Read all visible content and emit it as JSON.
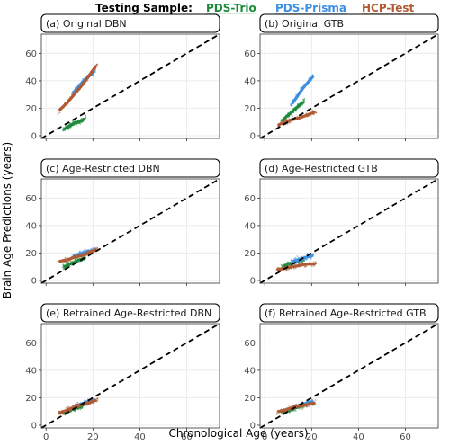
{
  "legend": {
    "title": "Testing Sample:",
    "items": [
      {
        "label": "PDS-Trio",
        "color": "#1b8a3a"
      },
      {
        "label": "PDS-Prisma",
        "color": "#3d8fe0"
      },
      {
        "label": "HCP-Test",
        "color": "#b05a33"
      }
    ]
  },
  "chart_data": {
    "type": "scatter",
    "xlabel": "Chronological Age (years)",
    "ylabel": "Brain Age Predictions (years)",
    "xlim": [
      -2,
      74
    ],
    "ylim": [
      -2,
      74
    ],
    "xticks": [
      "0",
      "20",
      "40",
      "60"
    ],
    "yticks": [
      "0",
      "20",
      "40",
      "60"
    ],
    "identity_line": true,
    "grid": true,
    "panels": [
      {
        "title": "(a) Original DBN",
        "series": [
          {
            "name": "PDS-Trio",
            "x": [
              8,
              10,
              12,
              14,
              16
            ],
            "y": [
              5,
              7,
              9,
              10,
              12
            ]
          },
          {
            "name": "PDS-Prisma",
            "x": [
              12,
              14,
              16,
              18,
              20
            ],
            "y": [
              32,
              36,
              40,
              43,
              46
            ]
          },
          {
            "name": "HCP-Test",
            "x": [
              6,
              9,
              12,
              15,
              18,
              21
            ],
            "y": [
              19,
              24,
              30,
              36,
              43,
              50
            ]
          }
        ]
      },
      {
        "title": "(b) Original GTB",
        "series": [
          {
            "name": "PDS-Trio",
            "x": [
              8,
              10,
              12,
              14,
              16
            ],
            "y": [
              12,
              15,
              18,
              21,
              24
            ]
          },
          {
            "name": "PDS-Prisma",
            "x": [
              12,
              14,
              16,
              18,
              20
            ],
            "y": [
              24,
              29,
              34,
              38,
              42
            ]
          },
          {
            "name": "HCP-Test",
            "x": [
              6,
              9,
              12,
              15,
              18,
              21
            ],
            "y": [
              8,
              10,
              12,
              13,
              15,
              17
            ]
          }
        ]
      },
      {
        "title": "(c) Age-Restricted DBN",
        "series": [
          {
            "name": "PDS-Trio",
            "x": [
              8,
              10,
              12,
              14,
              16
            ],
            "y": [
              10,
              12,
              13,
              15,
              16
            ]
          },
          {
            "name": "PDS-Prisma",
            "x": [
              12,
              14,
              16,
              18,
              20
            ],
            "y": [
              18,
              19,
              20,
              21,
              22
            ]
          },
          {
            "name": "HCP-Test",
            "x": [
              6,
              9,
              12,
              15,
              18,
              21
            ],
            "y": [
              14,
              15,
              17,
              18,
              20,
              22
            ]
          }
        ]
      },
      {
        "title": "(d) Age-Restricted GTB",
        "series": [
          {
            "name": "PDS-Trio",
            "x": [
              8,
              10,
              12,
              14,
              16
            ],
            "y": [
              10,
              12,
              13,
              14,
              15
            ]
          },
          {
            "name": "PDS-Prisma",
            "x": [
              12,
              14,
              16,
              18,
              20
            ],
            "y": [
              14,
              15,
              16,
              17,
              18
            ]
          },
          {
            "name": "HCP-Test",
            "x": [
              6,
              9,
              12,
              15,
              18,
              21
            ],
            "y": [
              8,
              9,
              10,
              11,
              12,
              12
            ]
          }
        ]
      },
      {
        "title": "(e) Retrained Age-Restricted DBN",
        "series": [
          {
            "name": "PDS-Trio",
            "x": [
              8,
              10,
              12,
              14,
              16
            ],
            "y": [
              9,
              11,
              12,
              13,
              15
            ]
          },
          {
            "name": "PDS-Prisma",
            "x": [
              12,
              14,
              16,
              18,
              20
            ],
            "y": [
              13,
              15,
              16,
              17,
              18
            ]
          },
          {
            "name": "HCP-Test",
            "x": [
              6,
              9,
              12,
              15,
              18,
              21
            ],
            "y": [
              9,
              11,
              13,
              15,
              16,
              18
            ]
          }
        ]
      },
      {
        "title": "(f) Retrained Age-Restricted GTB",
        "series": [
          {
            "name": "PDS-Trio",
            "x": [
              8,
              10,
              12,
              14,
              16
            ],
            "y": [
              10,
              11,
              12,
              13,
              14
            ]
          },
          {
            "name": "PDS-Prisma",
            "x": [
              12,
              14,
              16,
              18,
              20
            ],
            "y": [
              13,
              14,
              15,
              16,
              17
            ]
          },
          {
            "name": "HCP-Test",
            "x": [
              6,
              9,
              12,
              15,
              18,
              21
            ],
            "y": [
              10,
              11,
              13,
              14,
              15,
              16
            ]
          }
        ]
      }
    ]
  }
}
